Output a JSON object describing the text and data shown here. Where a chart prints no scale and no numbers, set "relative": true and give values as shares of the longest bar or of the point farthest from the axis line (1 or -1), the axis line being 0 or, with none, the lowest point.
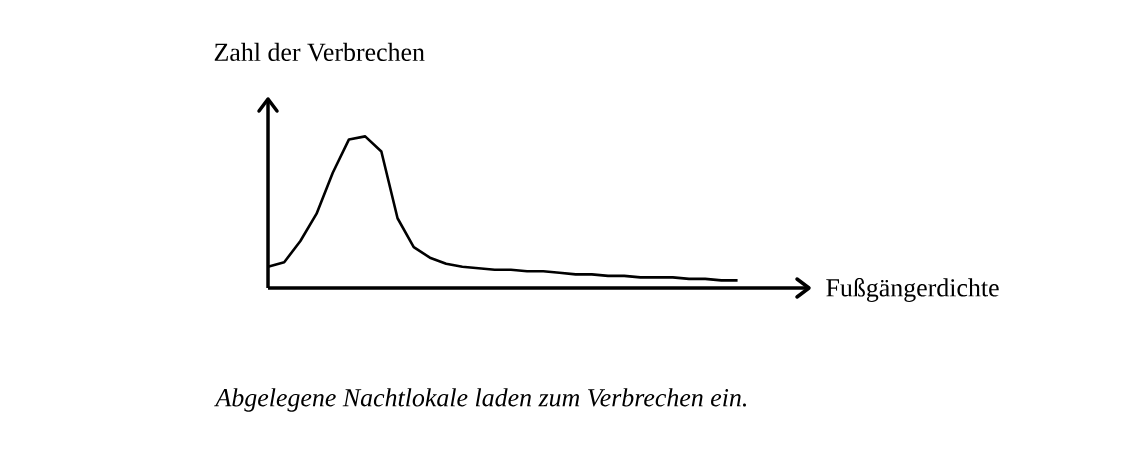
{
  "chart_data": {
    "type": "line",
    "relative": true,
    "ylabel": "Zahl der Verbrechen",
    "xlabel": "Fußgängerdichte",
    "annotations": [
      "*Abgelegene Nachtlokale laden zum Verbrechen ein.*"
    ],
    "color": "#000000",
    "marker": "none",
    "categories": [
      null,
      null,
      null,
      null,
      null,
      null,
      null,
      null,
      null,
      null,
      null,
      null,
      null,
      null,
      null,
      null,
      null,
      null,
      null,
      null,
      null,
      null,
      null,
      null,
      null,
      null,
      null,
      null,
      null,
      null
    ],
    "values": [
      0.14,
      0.17,
      0.31,
      0.49,
      0.76,
      0.98,
      1.0,
      0.9,
      0.46,
      0.27,
      0.2,
      0.16,
      0.14,
      0.13,
      0.12,
      0.12,
      0.11,
      0.11,
      0.1,
      0.09,
      0.09,
      0.08,
      0.08,
      0.07,
      0.07,
      0.07,
      0.06,
      0.06,
      0.05,
      0.05
    ]
  }
}
